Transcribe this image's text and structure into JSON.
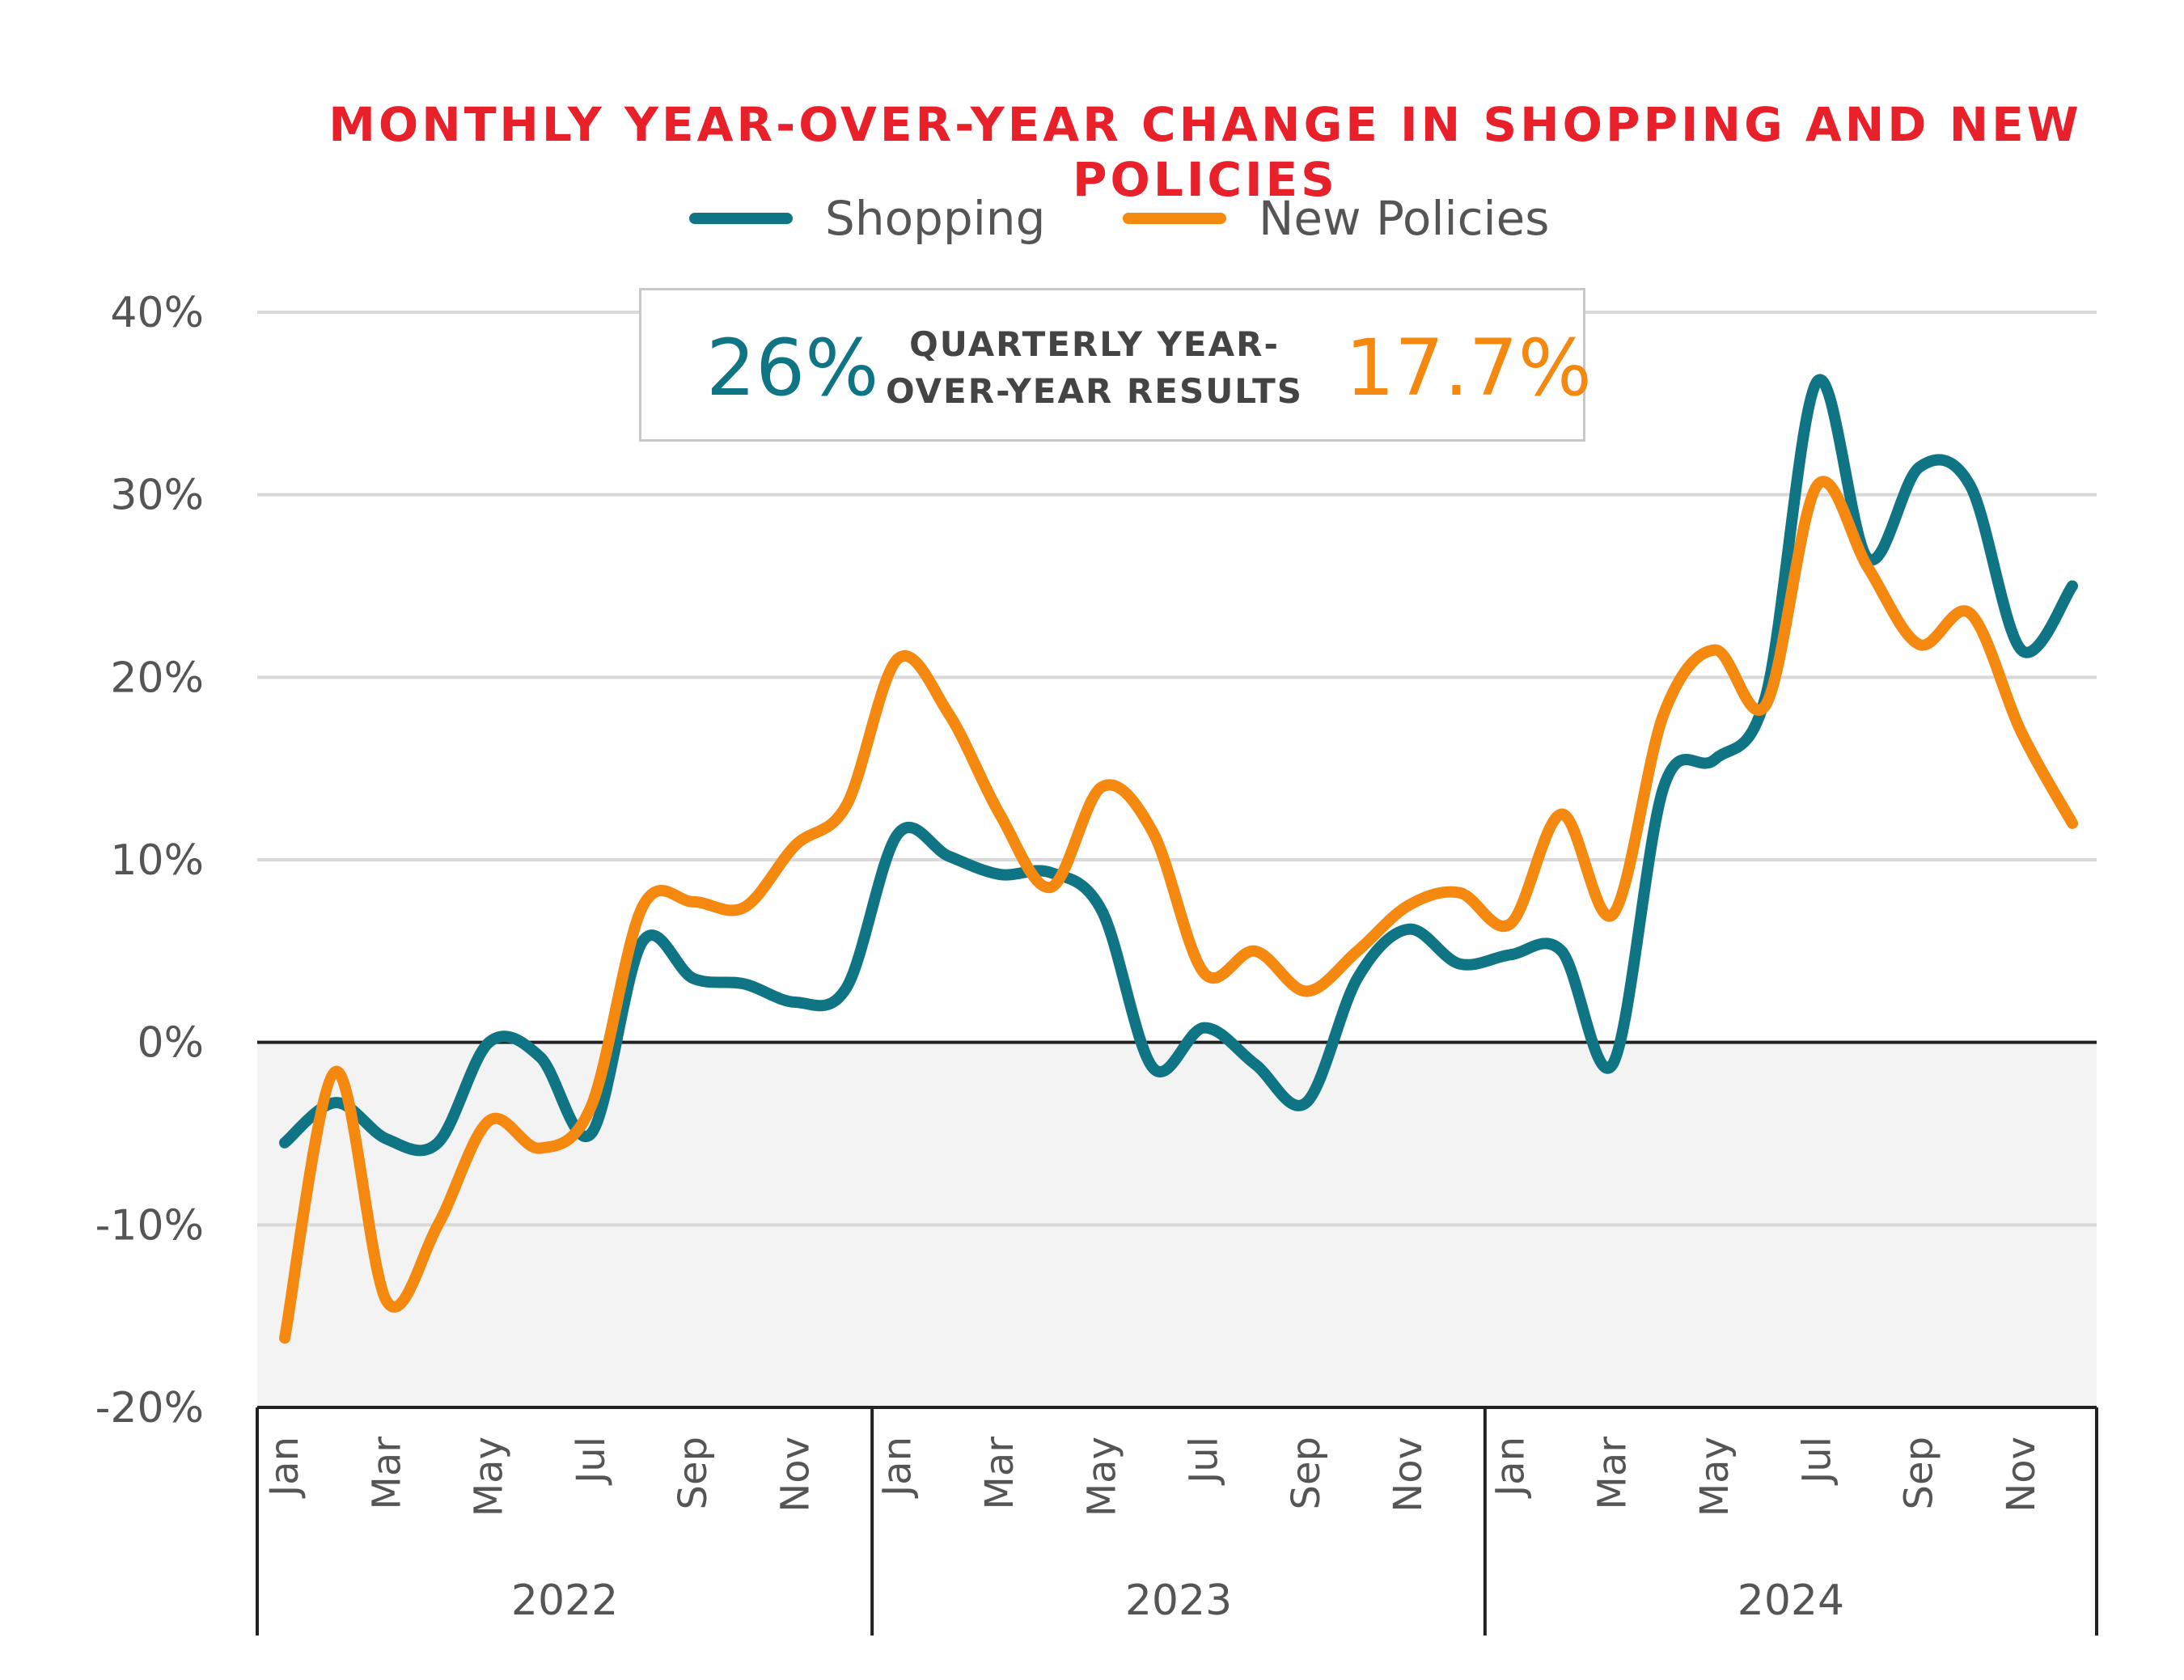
{
  "chart_data": {
    "type": "line",
    "title": "MONTHLY YEAR-OVER-YEAR CHANGE IN SHOPPING AND NEW POLICIES",
    "ylim": [
      -20,
      40
    ],
    "yticks": [
      "40%",
      "30%",
      "20%",
      "10%",
      "0%",
      "-10%",
      "-20%"
    ],
    "ytick_values": [
      40,
      30,
      20,
      10,
      0,
      -10,
      -20
    ],
    "x": [
      "Jan 2022",
      "Feb 2022",
      "Mar 2022",
      "Apr 2022",
      "May 2022",
      "Jun 2022",
      "Jul 2022",
      "Aug 2022",
      "Sep 2022",
      "Oct 2022",
      "Nov 2022",
      "Dec 2022",
      "Jan 2023",
      "Feb 2023",
      "Mar 2023",
      "Apr 2023",
      "May 2023",
      "Jun 2023",
      "Jul 2023",
      "Aug 2023",
      "Sep 2023",
      "Oct 2023",
      "Nov 2023",
      "Dec 2023",
      "Jan 2024",
      "Feb 2024",
      "Mar 2024",
      "Apr 2024",
      "May 2024",
      "Jun 2024",
      "Jul 2024",
      "Aug 2024",
      "Sep 2024",
      "Oct 2024",
      "Nov 2024",
      "Dec 2024"
    ],
    "xtick_labels": [
      "Jan",
      "Mar",
      "May",
      "Jul",
      "Sep",
      "Nov",
      "Jan",
      "Mar",
      "May",
      "Jul",
      "Sep",
      "Nov",
      "Jan",
      "Mar",
      "May",
      "Jul",
      "Sep",
      "Nov"
    ],
    "xtick_indices": [
      0,
      2,
      4,
      6,
      8,
      10,
      12,
      14,
      16,
      18,
      20,
      22,
      24,
      26,
      28,
      30,
      32,
      34
    ],
    "groups": [
      "2022",
      "2023",
      "2024"
    ],
    "legend_position": "top-center",
    "grid": true,
    "series": [
      {
        "name": "Shopping",
        "color": "#0f7585",
        "values": [
          -5.5,
          -3.3,
          -5.3,
          -5.5,
          0,
          -0.8,
          -5,
          5.5,
          3.5,
          3.2,
          2.2,
          3.0,
          11.4,
          10.2,
          9.2,
          9.3,
          7.2,
          -1.4,
          0.8,
          -1.2,
          -3.3,
          3.5,
          6.2,
          4.3,
          4.8,
          5.0,
          -1.2,
          14.0,
          15.5,
          19.0,
          36.2,
          26.5,
          31.5,
          30.5,
          21.5,
          25.0
        ]
      },
      {
        "name": "New Policies",
        "color": "#f5880f",
        "values": [
          -16.2,
          -1.6,
          -14.2,
          -10,
          -4.3,
          -5.8,
          -3.5,
          7.4,
          7.7,
          7.4,
          10.8,
          13.0,
          21.0,
          18.0,
          12.5,
          8.5,
          14.0,
          11.5,
          3.8,
          5.0,
          2.8,
          5.0,
          7.5,
          8.2,
          6.5,
          12.5,
          7.0,
          18.0,
          21.5,
          18.5,
          30.5,
          26.0,
          21.8,
          23.5,
          17.0,
          12.0
        ]
      }
    ],
    "annotation": {
      "shopping_value": "26%",
      "label_line1": "QUARTERLY YEAR-",
      "label_line2": "OVER-YEAR RESULTS",
      "new_policies_value": "17.7%"
    }
  }
}
